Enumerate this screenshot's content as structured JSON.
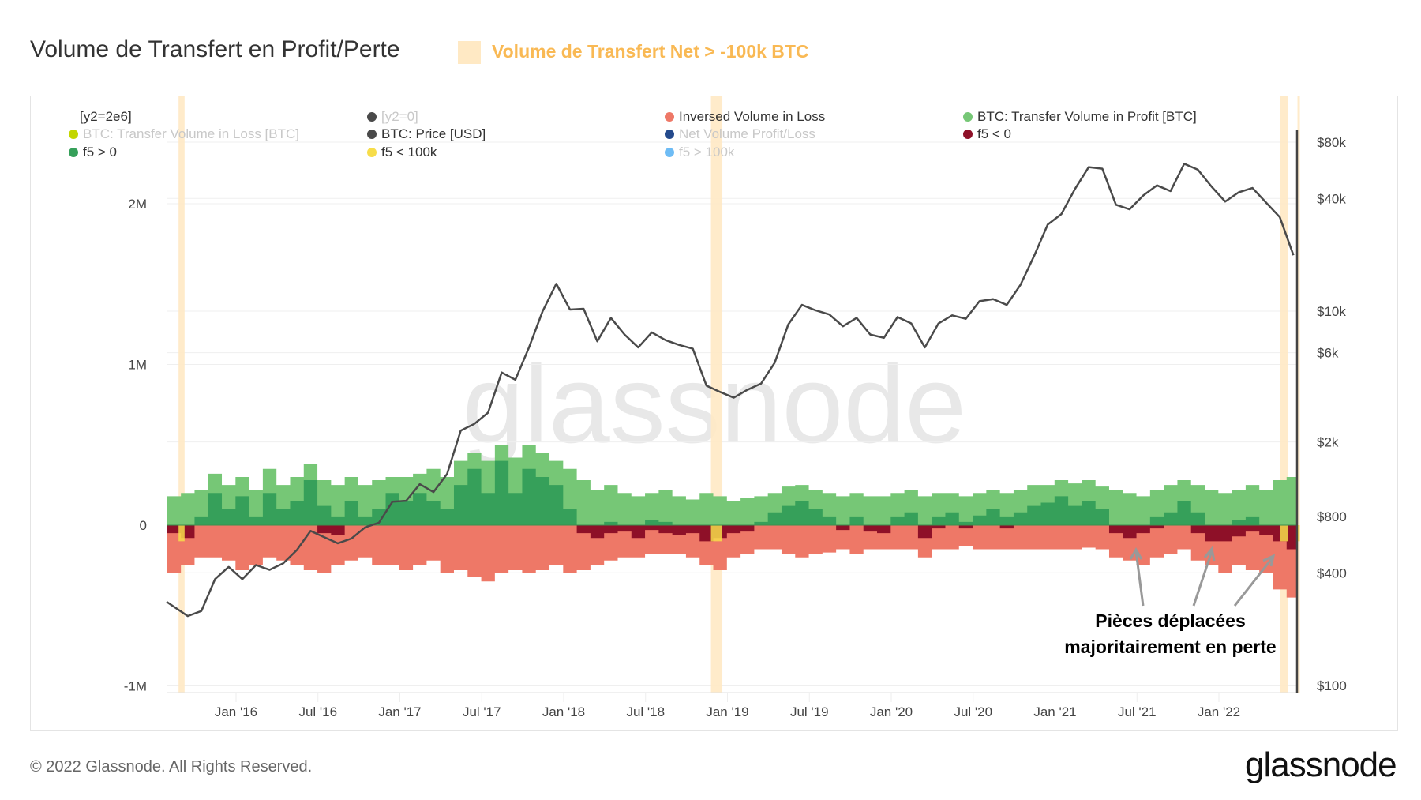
{
  "header": {
    "title": "Volume de Transfert en Profit/Perte",
    "highlight_label": "Volume de Transfert Net > -100k BTC",
    "highlight_color": "#ffe9c4"
  },
  "legend": [
    {
      "label": "[y2=2e6]",
      "color": null,
      "enabled": true
    },
    {
      "label": "[y2=0]",
      "color": "#4a4a4a",
      "enabled": false
    },
    {
      "label": "Inversed Volume in Loss",
      "color": "#ee7867",
      "enabled": true
    },
    {
      "label": "BTC: Transfer Volume in Profit [BTC]",
      "color": "#76c776",
      "enabled": true
    },
    {
      "label": "BTC: Transfer Volume in Loss [BTC]",
      "color": "#c3d600",
      "enabled": false
    },
    {
      "label": "BTC: Price [USD]",
      "color": "#4a4a4a",
      "enabled": true
    },
    {
      "label": "Net Volume Profit/Loss",
      "color": "#244a8c",
      "enabled": false
    },
    {
      "label": "f5 < 0",
      "color": "#8e1028",
      "enabled": true
    },
    {
      "label": "f5 > 0",
      "color": "#36a05a",
      "enabled": true
    },
    {
      "label": "f5 < 100k",
      "color": "#f7dd4a",
      "enabled": true
    },
    {
      "label": "f5 > 100k",
      "color": "#6ebcf5",
      "enabled": false
    }
  ],
  "annotation": {
    "line1": "Pièces déplacées",
    "line2": "majoritairement en perte"
  },
  "footer": {
    "copyright": "© 2022 Glassnode. All Rights Reserved.",
    "logo": "glassnode",
    "watermark": "glassnode"
  },
  "chart_data": {
    "type": "area",
    "title": "Volume de Transfert en Profit/Perte",
    "x_tick_labels": [
      "Jan '16",
      "Jul '16",
      "Jan '17",
      "Jul '17",
      "Jan '18",
      "Jul '18",
      "Jan '19",
      "Jul '19",
      "Jan '20",
      "Jul '20",
      "Jan '21",
      "Jul '21",
      "Jan '22"
    ],
    "x_ticks": [
      "2016-01",
      "2016-07",
      "2017-01",
      "2017-07",
      "2018-01",
      "2018-07",
      "2019-01",
      "2019-07",
      "2020-01",
      "2020-07",
      "2021-01",
      "2021-07",
      "2022-01"
    ],
    "y_left": {
      "ticks": [
        2000000,
        1000000,
        0,
        -1000000
      ],
      "tick_labels": [
        "2M",
        "1M",
        "0",
        "-1M"
      ],
      "range": [
        -1000000,
        2300000
      ]
    },
    "y_right": {
      "scale": "log",
      "ticks": [
        80000,
        40000,
        10000,
        6000,
        2000,
        800,
        400,
        100
      ],
      "tick_labels": [
        "$80k",
        "$40k",
        "$10k",
        "$6k",
        "$2k",
        "$800",
        "$400",
        "$100"
      ],
      "range": [
        100,
        80000
      ]
    },
    "grid": true,
    "legend_placement": "top",
    "x": [
      "2015-08",
      "2015-09",
      "2015-10",
      "2015-11",
      "2015-12",
      "2016-01",
      "2016-02",
      "2016-03",
      "2016-04",
      "2016-05",
      "2016-06",
      "2016-07",
      "2016-08",
      "2016-09",
      "2016-10",
      "2016-11",
      "2016-12",
      "2017-01",
      "2017-02",
      "2017-03",
      "2017-04",
      "2017-05",
      "2017-06",
      "2017-07",
      "2017-08",
      "2017-09",
      "2017-10",
      "2017-11",
      "2017-12",
      "2018-01",
      "2018-02",
      "2018-03",
      "2018-04",
      "2018-05",
      "2018-06",
      "2018-07",
      "2018-08",
      "2018-09",
      "2018-10",
      "2018-11",
      "2018-12",
      "2019-01",
      "2019-02",
      "2019-03",
      "2019-04",
      "2019-05",
      "2019-06",
      "2019-07",
      "2019-08",
      "2019-09",
      "2019-10",
      "2019-11",
      "2019-12",
      "2020-01",
      "2020-02",
      "2020-03",
      "2020-04",
      "2020-05",
      "2020-06",
      "2020-07",
      "2020-08",
      "2020-09",
      "2020-10",
      "2020-11",
      "2020-12",
      "2021-01",
      "2021-02",
      "2021-03",
      "2021-04",
      "2021-05",
      "2021-06",
      "2021-07",
      "2021-08",
      "2021-09",
      "2021-10",
      "2021-11",
      "2021-12",
      "2022-01",
      "2022-02",
      "2022-03",
      "2022-04",
      "2022-05",
      "2022-06"
    ],
    "series": [
      {
        "name": "BTC: Transfer Volume in Profit [BTC]",
        "color": "#76c776",
        "axis": "left",
        "values": [
          180000,
          200000,
          220000,
          320000,
          250000,
          300000,
          220000,
          350000,
          250000,
          300000,
          380000,
          280000,
          250000,
          300000,
          250000,
          280000,
          300000,
          300000,
          320000,
          350000,
          300000,
          400000,
          450000,
          400000,
          500000,
          420000,
          500000,
          450000,
          400000,
          350000,
          280000,
          220000,
          250000,
          200000,
          180000,
          200000,
          220000,
          180000,
          160000,
          200000,
          180000,
          150000,
          170000,
          180000,
          200000,
          240000,
          250000,
          220000,
          200000,
          180000,
          200000,
          180000,
          180000,
          200000,
          220000,
          180000,
          200000,
          200000,
          180000,
          200000,
          220000,
          200000,
          220000,
          250000,
          250000,
          280000,
          260000,
          280000,
          240000,
          220000,
          200000,
          180000,
          220000,
          250000,
          280000,
          250000,
          220000,
          200000,
          220000,
          250000,
          220000,
          280000,
          300000
        ]
      },
      {
        "name": "f5 > 0",
        "color": "#36a05a",
        "axis": "left",
        "values": [
          0,
          0,
          50000,
          200000,
          100000,
          180000,
          50000,
          200000,
          100000,
          150000,
          280000,
          120000,
          50000,
          150000,
          50000,
          100000,
          200000,
          150000,
          200000,
          150000,
          100000,
          250000,
          350000,
          200000,
          400000,
          200000,
          350000,
          300000,
          250000,
          100000,
          0,
          0,
          20000,
          0,
          0,
          30000,
          20000,
          0,
          0,
          0,
          0,
          0,
          0,
          20000,
          80000,
          120000,
          150000,
          100000,
          50000,
          0,
          50000,
          0,
          0,
          50000,
          80000,
          0,
          50000,
          80000,
          20000,
          60000,
          100000,
          50000,
          80000,
          120000,
          140000,
          180000,
          120000,
          150000,
          100000,
          0,
          0,
          0,
          50000,
          80000,
          150000,
          80000,
          0,
          0,
          30000,
          50000,
          0,
          0,
          0
        ]
      },
      {
        "name": "Inversed Volume in Loss",
        "color": "#ee7867",
        "axis": "left",
        "values": [
          -300000,
          -250000,
          -200000,
          -200000,
          -220000,
          -280000,
          -250000,
          -200000,
          -220000,
          -250000,
          -280000,
          -300000,
          -250000,
          -220000,
          -200000,
          -250000,
          -250000,
          -280000,
          -250000,
          -220000,
          -300000,
          -280000,
          -320000,
          -350000,
          -300000,
          -280000,
          -300000,
          -280000,
          -250000,
          -300000,
          -280000,
          -250000,
          -220000,
          -200000,
          -200000,
          -180000,
          -180000,
          -180000,
          -200000,
          -250000,
          -280000,
          -200000,
          -180000,
          -150000,
          -150000,
          -180000,
          -200000,
          -180000,
          -170000,
          -150000,
          -180000,
          -150000,
          -150000,
          -150000,
          -150000,
          -200000,
          -150000,
          -150000,
          -130000,
          -150000,
          -150000,
          -150000,
          -150000,
          -150000,
          -150000,
          -150000,
          -150000,
          -140000,
          -150000,
          -200000,
          -220000,
          -250000,
          -200000,
          -180000,
          -150000,
          -220000,
          -250000,
          -300000,
          -250000,
          -280000,
          -300000,
          -400000,
          -450000
        ]
      },
      {
        "name": "f5 < 0",
        "color": "#8e1028",
        "axis": "left",
        "values": [
          -50000,
          -80000,
          0,
          0,
          0,
          0,
          0,
          0,
          0,
          0,
          0,
          -50000,
          -60000,
          0,
          0,
          0,
          0,
          0,
          0,
          0,
          0,
          0,
          0,
          0,
          0,
          0,
          0,
          0,
          0,
          0,
          -50000,
          -80000,
          -50000,
          -40000,
          -80000,
          -30000,
          -50000,
          -60000,
          -50000,
          -100000,
          -80000,
          -50000,
          -40000,
          0,
          0,
          0,
          0,
          0,
          0,
          -30000,
          0,
          -40000,
          -50000,
          0,
          0,
          -80000,
          -20000,
          0,
          -20000,
          0,
          0,
          -20000,
          0,
          0,
          0,
          0,
          0,
          0,
          0,
          -50000,
          -80000,
          -50000,
          -20000,
          0,
          0,
          -50000,
          -100000,
          -100000,
          -70000,
          -40000,
          -60000,
          -100000,
          -150000
        ]
      },
      {
        "name": "BTC: Price [USD]",
        "color": "#4a4a4a",
        "axis": "right",
        "values": [
          280,
          235,
          250,
          370,
          430,
          370,
          440,
          415,
          450,
          530,
          670,
          620,
          575,
          610,
          700,
          740,
          960,
          970,
          1190,
          1080,
          1350,
          2300,
          2500,
          2870,
          4700,
          4300,
          6400,
          10000,
          14000,
          10200,
          10300,
          6900,
          9200,
          7500,
          6400,
          7700,
          7000,
          6600,
          6300,
          4000,
          3700,
          3450,
          3800,
          4100,
          5300,
          8500,
          10800,
          10100,
          9600,
          8300,
          9200,
          7500,
          7200,
          9300,
          8600,
          6400,
          8600,
          9500,
          9100,
          11300,
          11600,
          10800,
          13800,
          19700,
          29000,
          33000,
          45000,
          58800,
          57700,
          37000,
          35000,
          41500,
          47000,
          43800,
          61300,
          57000,
          46300,
          38500,
          43200,
          45500,
          38000,
          31800,
          19900
        ]
      }
    ],
    "highlight_periods": [
      {
        "start": "2015-08-25",
        "end": "2015-09-08"
      },
      {
        "start": "2018-11-25",
        "end": "2018-12-20"
      },
      {
        "start": "2022-05-15",
        "end": "2022-06-03"
      },
      {
        "start": "2022-06-24",
        "end": "2022-06-27"
      }
    ]
  }
}
